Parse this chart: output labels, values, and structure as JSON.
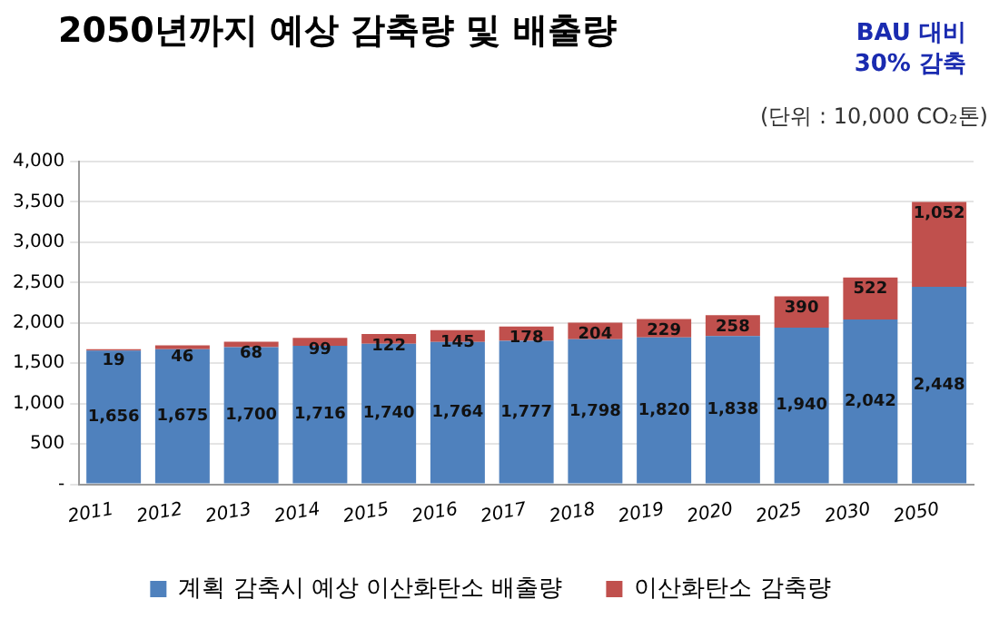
{
  "chart_data": {
    "type": "bar",
    "stacked": true,
    "title": "2050년까지 예상 감축량 및 배출량",
    "annotations": [
      "BAU 대비 30% 감축",
      "(단위 : 10,000 CO₂톤)"
    ],
    "categories": [
      "2011",
      "2012",
      "2013",
      "2014",
      "2015",
      "2016",
      "2017",
      "2018",
      "2019",
      "2020",
      "2025",
      "2030",
      "2050"
    ],
    "series": [
      {
        "name": "계획 감축시 예상 이산화탄소 배출량",
        "color": "#4f81bd",
        "values": [
          1656,
          1675,
          1700,
          1716,
          1740,
          1764,
          1777,
          1798,
          1820,
          1838,
          1940,
          2042,
          2448
        ],
        "value_labels": [
          "1,656",
          "1,675",
          "1,700",
          "1,716",
          "1,740",
          "1,764",
          "1,777",
          "1,798",
          "1,820",
          "1,838",
          "1,940",
          "2,042",
          "2,448"
        ]
      },
      {
        "name": "이산화탄소 감축량",
        "color": "#c0504d",
        "values": [
          19,
          46,
          68,
          99,
          122,
          145,
          178,
          204,
          229,
          258,
          390,
          522,
          1052
        ],
        "value_labels": [
          "19",
          "46",
          "68",
          "99",
          "122",
          "145",
          "178",
          "204",
          "229",
          "258",
          "390",
          "522",
          "1,052"
        ]
      }
    ],
    "ylim": [
      0,
      4000
    ],
    "yticks": [
      {
        "value": 0,
        "label": "-"
      },
      500,
      {
        "value": 1000,
        "label": "1,000"
      },
      {
        "value": 1500,
        "label": "1,500"
      },
      {
        "value": 2000,
        "label": "2,000"
      },
      {
        "value": 2500,
        "label": "2,500"
      },
      {
        "value": 3000,
        "label": "3,000"
      },
      {
        "value": 3500,
        "label": "3,500"
      },
      {
        "value": 4000,
        "label": "4,000"
      }
    ],
    "grid": "y",
    "legend": "bottom"
  }
}
